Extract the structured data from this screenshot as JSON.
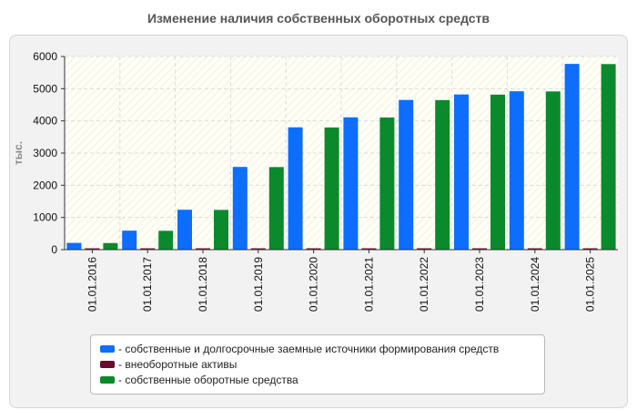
{
  "title": "Изменение наличия собственных оборотных средств",
  "chart_data": {
    "type": "bar",
    "title": "Изменение наличия собственных оборотных средств",
    "ylabel": "тыс.",
    "xlabel": "",
    "ylim": [
      0,
      6000
    ],
    "yticks": [
      0,
      1000,
      2000,
      3000,
      4000,
      5000,
      6000
    ],
    "categories": [
      "01.01.2016",
      "01.01.2017",
      "01.01.2018",
      "01.01.2019",
      "01.01.2020",
      "01.01.2021",
      "01.01.2022",
      "01.01.2023",
      "01.01.2024",
      "01.01.2025"
    ],
    "series": [
      {
        "name": "- собственные и долгосрочные заемные источники формирования средств",
        "color": "#0d6efd",
        "values": [
          210,
          590,
          1240,
          2570,
          3800,
          4110,
          4650,
          4820,
          4920,
          5770
        ]
      },
      {
        "name": "- внеоборотные активы",
        "color": "#6b0a2e",
        "values": [
          5,
          5,
          5,
          5,
          5,
          5,
          5,
          5,
          5,
          5
        ]
      },
      {
        "name": "- собственные оборотные средства",
        "color": "#0a8a2c",
        "values": [
          205,
          585,
          1235,
          2565,
          3795,
          4105,
          4645,
          4815,
          4915,
          5765
        ]
      }
    ],
    "grid": true,
    "legend": "bottom"
  }
}
